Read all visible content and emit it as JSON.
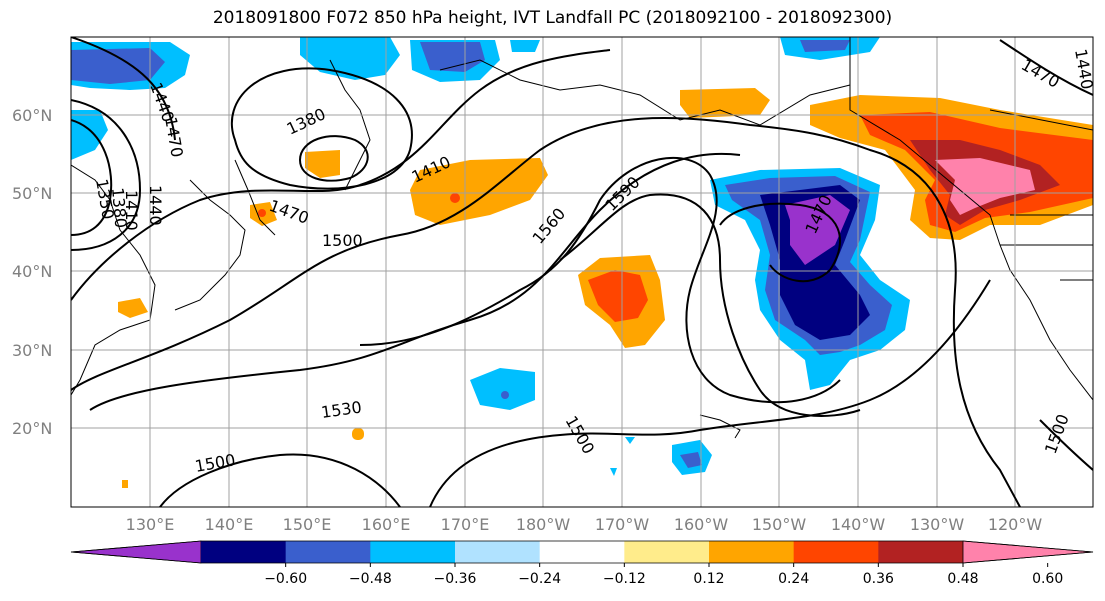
{
  "title": "2018091800 F072 850 hPa height, IVT Landfall PC (2018092100 - 2018092300)",
  "lat_labels": [
    "60°N",
    "50°N",
    "40°N",
    "30°N",
    "20°N"
  ],
  "lon_labels": [
    "130°E",
    "140°E",
    "150°E",
    "160°E",
    "170°E",
    "180°W",
    "170°W",
    "160°W",
    "150°W",
    "140°W",
    "130°W",
    "120°W"
  ],
  "contour_labels": [
    "1440",
    "1470",
    "1380",
    "1410",
    "1470",
    "1500",
    "1560",
    "1590",
    "1470",
    "1350",
    "1380",
    "1410",
    "1440",
    "1530",
    "1500",
    "1500",
    "1500",
    "1470",
    "1440"
  ],
  "colorbar": {
    "ticks": [
      "−0.60",
      "−0.48",
      "−0.36",
      "−0.24",
      "−0.12",
      "0.12",
      "0.24",
      "0.36",
      "0.48",
      "0.60"
    ],
    "colors": [
      "#9932cc",
      "#000080",
      "#3a5fcd",
      "#00bfff",
      "#b0e2ff",
      "#ffffff",
      "#ffec8b",
      "#ffa500",
      "#ff4500",
      "#b22222",
      "#ff82ab"
    ]
  },
  "colors": {
    "land_outline": "#000000",
    "grid": "#a0a0a0",
    "contour": "#000000"
  }
}
